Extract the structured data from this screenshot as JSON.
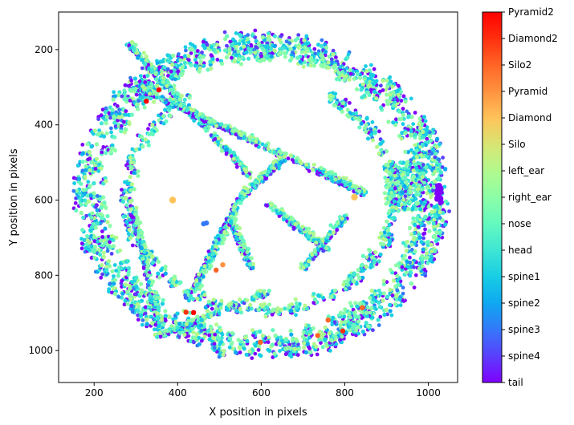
{
  "chart_data": {
    "type": "scatter",
    "title": "",
    "xlabel": "X position in pixels",
    "ylabel": "Y position in pixels",
    "xlim": [
      115,
      1070
    ],
    "ylim": [
      1085,
      100
    ],
    "y_inverted": true,
    "x_ticks": [
      200,
      400,
      600,
      800,
      1000
    ],
    "y_ticks": [
      200,
      400,
      600,
      800,
      1000
    ],
    "grid": false,
    "colormap": "rainbow",
    "colorbar_labels": [
      "tail",
      "spine4",
      "spine3",
      "spine2",
      "spine1",
      "head",
      "nose",
      "right_ear",
      "left_ear",
      "Silo",
      "Diamond",
      "Pyramid",
      "Silo2",
      "Diamond2",
      "Pyramid2"
    ],
    "colorbar_colors": [
      "#8000ff",
      "#5a3ffd",
      "#3478f9",
      "#0ea8f0",
      "#18cde4",
      "#3ee6d3",
      "#64f9bf",
      "#8cfea7",
      "#b2f98d",
      "#d8e573",
      "#ffc35a",
      "#ff9240",
      "#ff6526",
      "#ff2f0e",
      "#ff0000"
    ],
    "structures": {
      "arena_outer": {
        "cx": 600,
        "cy": 590,
        "r": 440
      },
      "diagonal_A": [
        [
          285,
          185
        ],
        [
          580,
          540
        ]
      ],
      "diagonal_B": [
        [
          310,
          300
        ],
        [
          850,
          580
        ]
      ],
      "pillar_left": [
        [
          290,
          600
        ],
        [
          360,
          940
        ]
      ],
      "pillar_mid": [
        [
          525,
          645
        ],
        [
          580,
          780
        ]
      ],
      "arc_low": [
        [
          350,
          960
        ],
        [
          620,
          840
        ]
      ]
    },
    "object_markers": [
      {
        "label": "Pyramid2",
        "x": 355,
        "y": 307
      },
      {
        "label": "Pyramid2",
        "x": 325,
        "y": 337
      },
      {
        "label": "Diamond",
        "x": 388,
        "y": 600
      },
      {
        "label": "Diamond",
        "x": 823,
        "y": 592
      },
      {
        "label": "spine3",
        "x": 462,
        "y": 663
      },
      {
        "label": "spine3",
        "x": 469,
        "y": 661
      },
      {
        "label": "Silo2",
        "x": 492,
        "y": 786
      },
      {
        "label": "Pyramid",
        "x": 508,
        "y": 772
      },
      {
        "label": "Diamond2",
        "x": 420,
        "y": 898
      },
      {
        "label": "Pyramid2",
        "x": 438,
        "y": 899
      },
      {
        "label": "Silo2",
        "x": 598,
        "y": 978
      },
      {
        "label": "Silo2",
        "x": 735,
        "y": 960
      },
      {
        "label": "Silo2",
        "x": 760,
        "y": 919
      },
      {
        "label": "Diamond2",
        "x": 795,
        "y": 948
      },
      {
        "label": "Silo2",
        "x": 842,
        "y": 886
      }
    ]
  }
}
